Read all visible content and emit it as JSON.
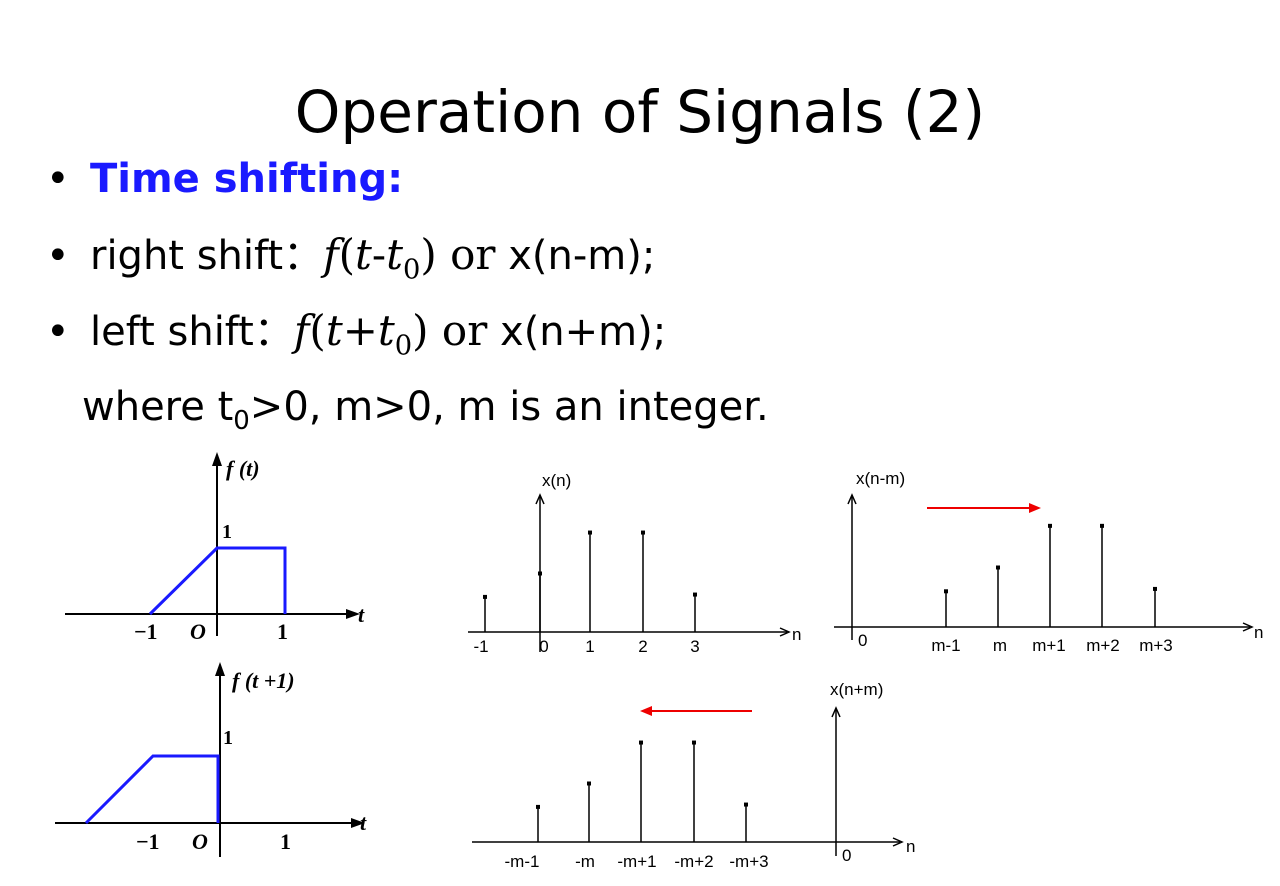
{
  "title": "Operation of Signals (2)",
  "bullets": {
    "heading": "Time shifting:",
    "right_label": "right shift：",
    "right_f": "f",
    "right_t": "t",
    "right_op": "-",
    "right_t0": "t",
    "right_sub": "0",
    "right_or": "or",
    "right_x": "x(n-m);",
    "left_label": "left shift：",
    "left_f": "f",
    "left_t": "t",
    "left_op": "+",
    "left_t0": "t",
    "left_sub": "0",
    "left_or": "or",
    "left_x": "x(n+m);",
    "where_a": "where t",
    "where_sub": "0",
    "where_b": ">0, m>0, m is an integer."
  },
  "figures": {
    "ft": {
      "ylabel": "f (t)",
      "one": "1",
      "xticks": [
        "−1",
        "O",
        "1"
      ],
      "axis": "t"
    },
    "ft1": {
      "ylabel": "f (t +1)",
      "one": "1",
      "xticks": [
        "−1",
        "O",
        "1"
      ],
      "axis": "t"
    },
    "xn": {
      "ylabel": "x(n)",
      "xticks": [
        "-1",
        "0",
        "1",
        "2",
        "3"
      ],
      "axis": "n",
      "values": [
        0.3,
        0.5,
        0.85,
        0.85,
        0.32
      ]
    },
    "xnm": {
      "ylabel": "x(n-m)",
      "origin": "0",
      "xticks": [
        "m-1",
        "m",
        "m+1",
        "m+2",
        "m+3"
      ],
      "axis": "n",
      "values": [
        0.3,
        0.5,
        0.85,
        0.85,
        0.32
      ]
    },
    "xnpm": {
      "ylabel": "x(n+m)",
      "origin": "0",
      "xticks": [
        "-m-1",
        "-m",
        "-m+1",
        "-m+2",
        "-m+3"
      ],
      "axis": "n",
      "values": [
        0.3,
        0.5,
        0.85,
        0.85,
        0.32
      ]
    }
  },
  "colors": {
    "heading": "#1a1aff",
    "ramp": "#1a1aff",
    "arrow": "#ee0000"
  }
}
